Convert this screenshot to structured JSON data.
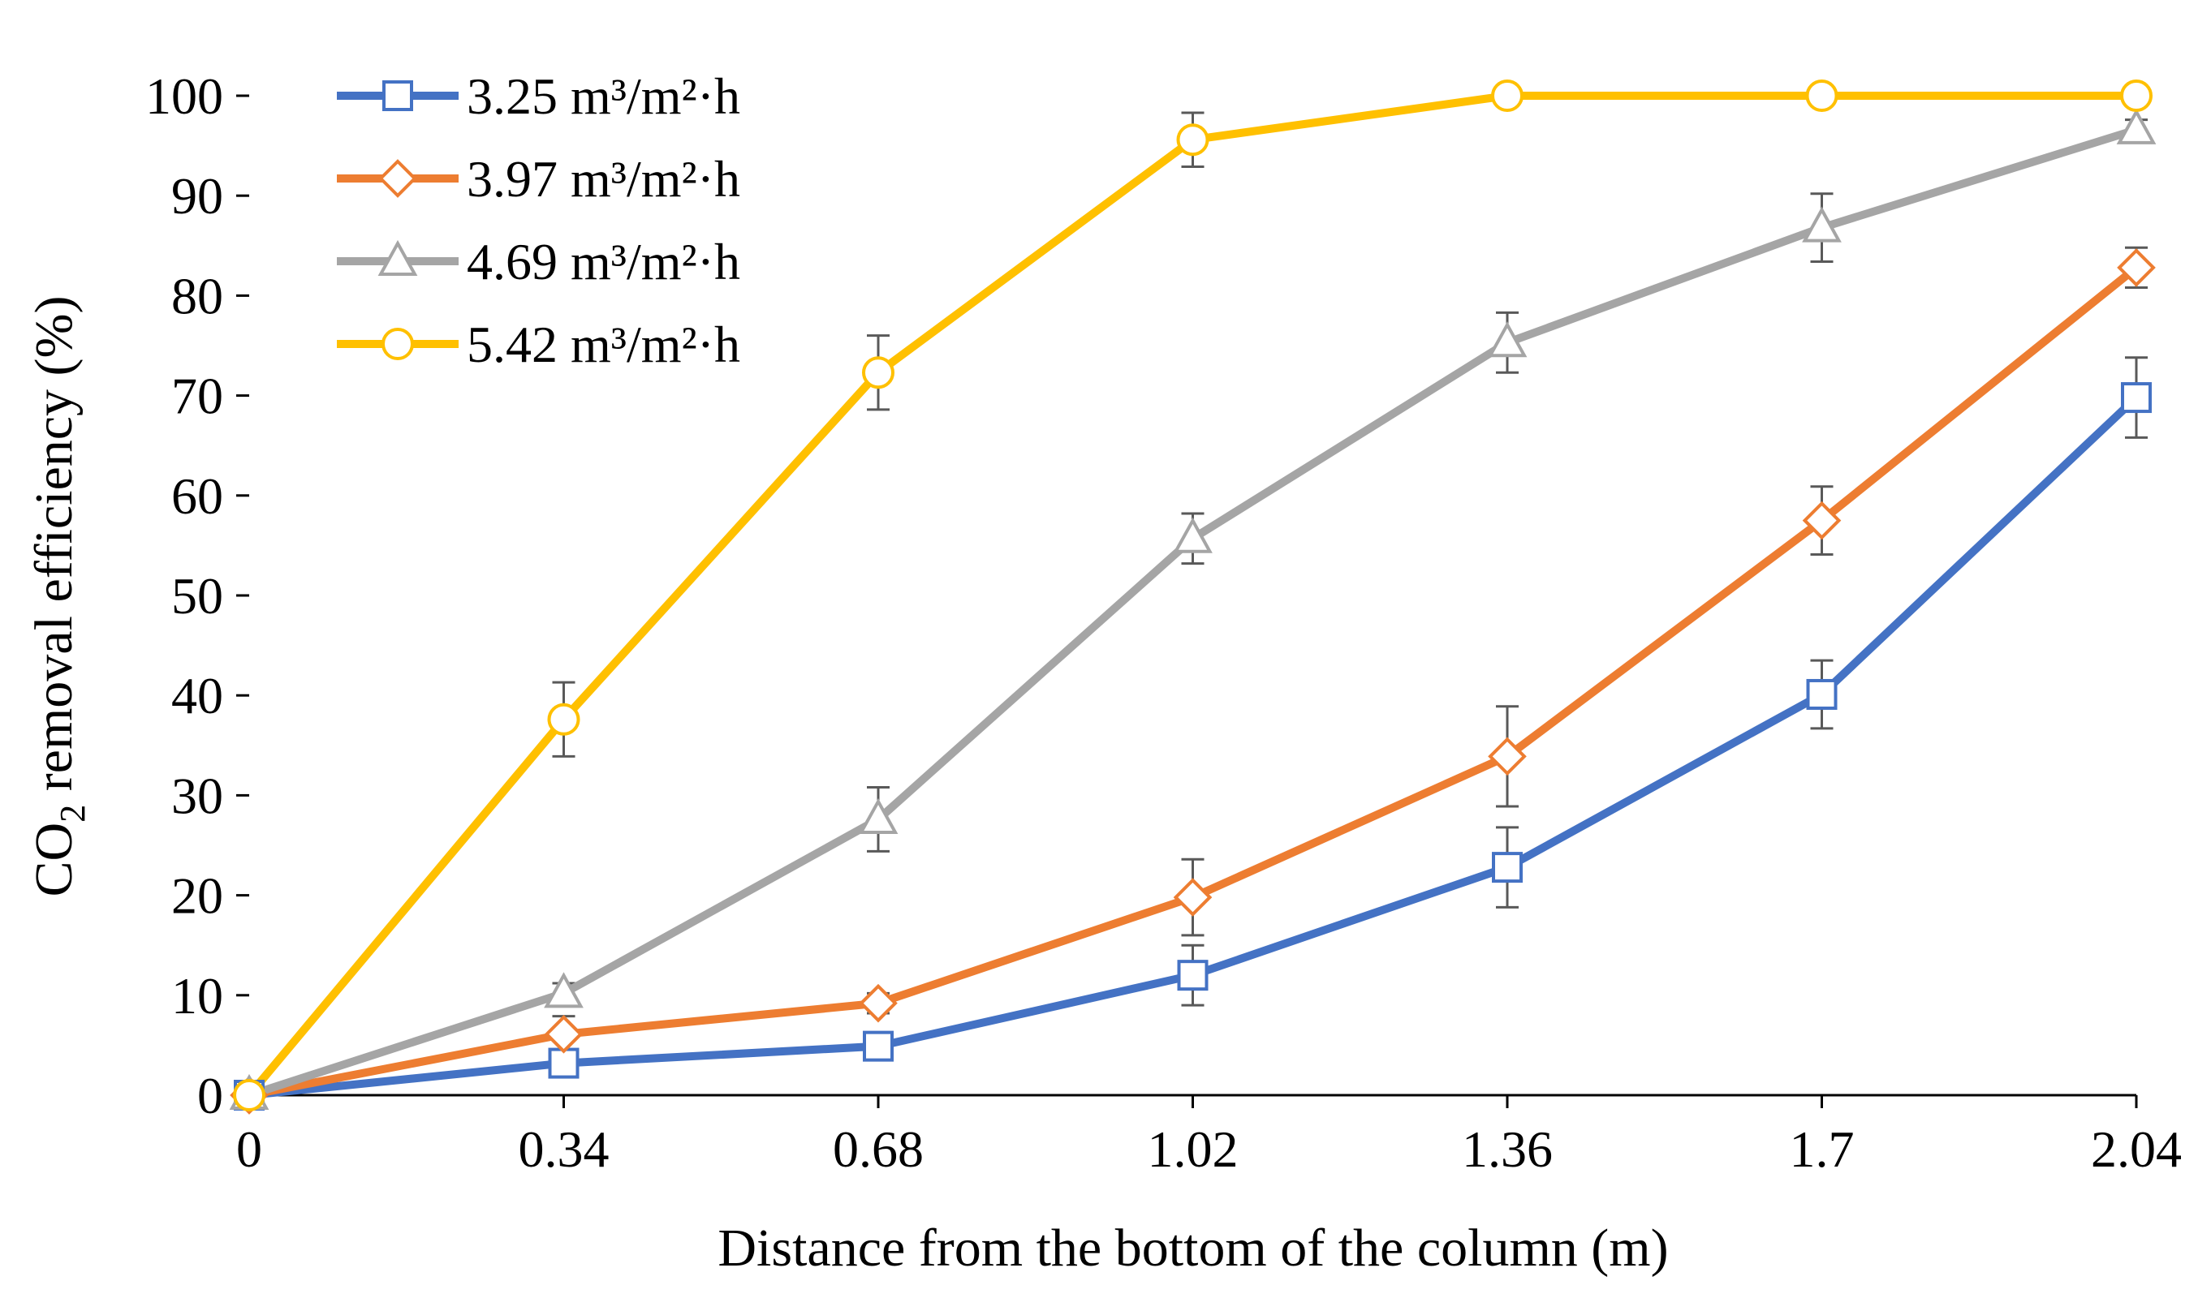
{
  "chart_data": {
    "type": "line",
    "title": "",
    "xlabel": "Distance from the bottom of the column (m)",
    "ylabel_main": "CO",
    "ylabel_sub": "2",
    "ylabel_rest": " removal efficiency (%)",
    "categories": [
      "0",
      "0.34",
      "0.68",
      "1.02",
      "1.36",
      "1.7",
      "2.04"
    ],
    "ylim": [
      0,
      100
    ],
    "yticks": [
      0,
      10,
      20,
      30,
      40,
      50,
      60,
      70,
      80,
      90,
      100
    ],
    "legend_position": "top-left",
    "grid": false,
    "series": [
      {
        "name": "3.25 m³/m²·h",
        "color": "#4472C4",
        "marker": "square",
        "values": [
          0,
          3.2,
          4.9,
          12.0,
          22.8,
          40.1,
          69.8
        ],
        "errors": [
          0,
          1.0,
          0.9,
          3.0,
          4.0,
          3.4,
          4.0
        ]
      },
      {
        "name": "3.97 m³/m²·h",
        "color": "#ED7D31",
        "marker": "diamond",
        "values": [
          0,
          6.1,
          9.2,
          19.8,
          33.9,
          57.5,
          82.8
        ],
        "errors": [
          0,
          1.8,
          1.0,
          3.8,
          5.0,
          3.4,
          2.0
        ]
      },
      {
        "name": "4.69 m³/m²·h",
        "color": "#A5A5A5",
        "marker": "triangle",
        "values": [
          0,
          10.2,
          27.6,
          55.7,
          75.3,
          86.8,
          96.6
        ],
        "errors": [
          0,
          1.0,
          3.2,
          2.5,
          3.0,
          3.4,
          1.0
        ]
      },
      {
        "name": "5.42 m³/m²·h",
        "color": "#FFC000",
        "marker": "circle",
        "values": [
          0,
          37.6,
          72.3,
          95.6,
          100,
          100,
          100
        ],
        "errors": [
          0,
          3.7,
          3.7,
          2.7,
          0,
          0,
          0
        ]
      }
    ]
  }
}
